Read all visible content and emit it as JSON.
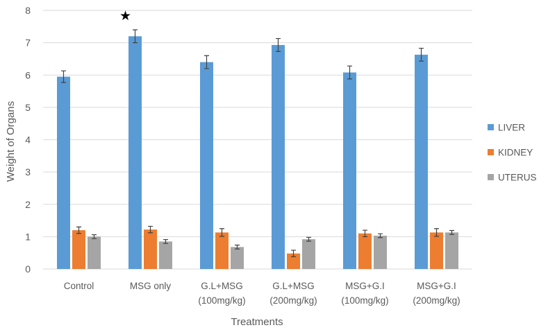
{
  "chart_data": {
    "type": "bar",
    "title": "",
    "xlabel": "Treatments",
    "ylabel": "Weight of Organs",
    "ylim": [
      0,
      8
    ],
    "yticks": [
      "0",
      "1",
      "2",
      "3",
      "4",
      "5",
      "6",
      "7",
      "8"
    ],
    "grid": true,
    "legend_position": "right",
    "categories": [
      [
        "Control"
      ],
      [
        "MSG only"
      ],
      [
        "G.L+MSG",
        "(100mg/kg)"
      ],
      [
        "G.L+MSG",
        "(200mg/kg)"
      ],
      [
        "MSG+G.I",
        "(100mg/kg)"
      ],
      [
        "MSG+G.I",
        "(200mg/kg)"
      ]
    ],
    "series": [
      {
        "name": "LIVER",
        "color": "#5b9bd5",
        "values": [
          5.95,
          7.2,
          6.4,
          6.93,
          6.08,
          6.63
        ],
        "errors": [
          0.18,
          0.2,
          0.2,
          0.2,
          0.2,
          0.2
        ]
      },
      {
        "name": "KIDNEY",
        "color": "#ed7d31",
        "values": [
          1.2,
          1.22,
          1.13,
          0.48,
          1.1,
          1.13
        ],
        "errors": [
          0.1,
          0.1,
          0.12,
          0.1,
          0.1,
          0.12
        ]
      },
      {
        "name": "UTERUS",
        "color": "#a5a5a5",
        "values": [
          1.0,
          0.85,
          0.68,
          0.92,
          1.03,
          1.13
        ],
        "errors": [
          0.06,
          0.06,
          0.06,
          0.06,
          0.06,
          0.06
        ]
      }
    ],
    "annotations": [
      {
        "symbol": "★",
        "category_index": 1,
        "series": "LIVER"
      }
    ]
  }
}
